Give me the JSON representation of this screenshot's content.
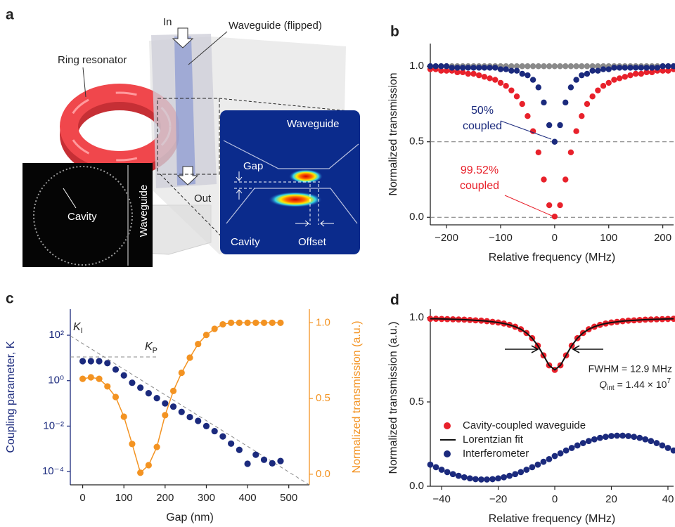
{
  "figure": {
    "panel_labels": [
      "a",
      "b",
      "c",
      "d"
    ]
  },
  "illustration": {
    "in": "In",
    "waveguide_flipped": "Waveguide (flipped)",
    "ring_resonator": "Ring resonator",
    "out": "Out",
    "micrograph": {
      "cavity": "Cavity",
      "waveguide": "Waveguide"
    },
    "inset": {
      "waveguide": "Waveguide",
      "gap": "Gap",
      "cavity": "Cavity",
      "offset": "Offset"
    }
  },
  "chart_data": [
    {
      "type": "scatter",
      "xlabel": "Relative frequency (MHz)",
      "ylabel": "Normalized transmission",
      "xlim": [
        -230,
        220
      ],
      "ylim": [
        -0.05,
        1.15
      ],
      "xticks": [
        {
          "value": -200,
          "label": "−200"
        },
        {
          "value": -100,
          "label": "−100"
        },
        0,
        100,
        200
      ],
      "yticks": [
        {
          "value": 0,
          "label": "0.0"
        },
        0.5,
        {
          "value": 1,
          "label": "1.0"
        }
      ],
      "dashed_lines": [
        0.5,
        0
      ],
      "x": [
        -230,
        -220,
        -210,
        -200,
        -190,
        -180,
        -170,
        -160,
        -150,
        -140,
        -130,
        -120,
        -110,
        -100,
        -90,
        -80,
        -70,
        -60,
        -50,
        -40,
        -30,
        -20,
        -10,
        0,
        10,
        20,
        30,
        40,
        50,
        60,
        70,
        80,
        90,
        100,
        110,
        120,
        130,
        140,
        150,
        160,
        170,
        180,
        190,
        200,
        210,
        220
      ],
      "series": [
        {
          "color": "#8a8a8a",
          "mode": "markers",
          "values": [
            1,
            1,
            1,
            1,
            1,
            1,
            1,
            1,
            1,
            1,
            1,
            1,
            1,
            1,
            1,
            1,
            1,
            1,
            1,
            1,
            1,
            1,
            1,
            1,
            1,
            1,
            1,
            1,
            1,
            1,
            1,
            1,
            1,
            1,
            1,
            1,
            1,
            1,
            1,
            1,
            1,
            1,
            1,
            1,
            1,
            1
          ]
        },
        {
          "color": "#e8212b",
          "mode": "markers",
          "values": [
            0.98,
            0.98,
            0.97,
            0.97,
            0.97,
            0.96,
            0.96,
            0.95,
            0.95,
            0.94,
            0.93,
            0.92,
            0.91,
            0.89,
            0.87,
            0.84,
            0.8,
            0.75,
            0.67,
            0.57,
            0.43,
            0.25,
            0.08,
            0.005,
            0.08,
            0.25,
            0.43,
            0.57,
            0.67,
            0.75,
            0.8,
            0.84,
            0.87,
            0.89,
            0.91,
            0.92,
            0.93,
            0.94,
            0.95,
            0.95,
            0.96,
            0.96,
            0.97,
            0.97,
            0.97,
            0.98
          ]
        },
        {
          "color": "#1b2a7d",
          "mode": "markers",
          "values": [
            1,
            1,
            1,
            1,
            0.99,
            0.99,
            0.99,
            0.99,
            0.99,
            0.99,
            0.99,
            0.99,
            0.99,
            0.98,
            0.98,
            0.97,
            0.97,
            0.95,
            0.94,
            0.91,
            0.86,
            0.76,
            0.61,
            0.5,
            0.61,
            0.76,
            0.86,
            0.91,
            0.94,
            0.95,
            0.97,
            0.97,
            0.98,
            0.98,
            0.99,
            0.99,
            0.99,
            0.99,
            0.99,
            0.99,
            0.99,
            0.99,
            0.99,
            1,
            1,
            1
          ]
        }
      ],
      "annotations": [
        {
          "lines": [
            "50%",
            "coupled"
          ],
          "color": "#1b2a7d"
        },
        {
          "lines": [
            "99.52%",
            "coupled"
          ],
          "color": "#e8212b"
        }
      ]
    },
    {
      "type": "scatter",
      "xlabel": "Gap (nm)",
      "ylabel": "Coupling parameter, K",
      "y2label": "Normalized transmission (a.u.)",
      "ycolor": "#1b2a7d",
      "y2color": "#f39322",
      "xlim": [
        -30,
        550
      ],
      "ylim": [
        2.6e-05,
        1400
      ],
      "ylog": true,
      "y2lim": [
        -0.07,
        1.09
      ],
      "xticks": [
        0,
        100,
        200,
        300,
        400,
        500
      ],
      "yticks": [
        {
          "value": 0.0001,
          "label": "10⁻⁴"
        },
        {
          "value": 0.01,
          "label": "10⁻²"
        },
        {
          "value": 1,
          "label": "10⁰"
        },
        {
          "value": 100,
          "label": "10²"
        }
      ],
      "y2ticks": [
        {
          "value": 0,
          "label": "0.0"
        },
        0.5,
        {
          "value": 1,
          "label": "1.0"
        }
      ],
      "x": [
        0,
        20,
        40,
        60,
        80,
        100,
        120,
        140,
        160,
        180,
        200,
        220,
        240,
        260,
        280,
        300,
        320,
        340,
        360,
        380,
        400,
        420,
        440,
        460,
        480
      ],
      "series": [
        {
          "color": "#1b2a7d",
          "mode": "markers",
          "values": [
            7.2,
            7.2,
            7.2,
            5.9,
            3.1,
            1.7,
            0.81,
            0.49,
            0.28,
            0.17,
            0.1,
            0.072,
            0.042,
            0.025,
            0.017,
            0.01,
            0.006,
            0.0035,
            0.0017,
            0.0009,
            0.00022,
            0.00055,
            0.00033,
            0.00023,
            0.00029
          ]
        },
        {
          "color": "#f39322",
          "mode": "markers+line",
          "axis": "y2",
          "values": [
            0.63,
            0.64,
            0.63,
            0.58,
            0.51,
            0.38,
            0.2,
            0.01,
            0.06,
            0.18,
            0.39,
            0.55,
            0.67,
            0.77,
            0.86,
            0.92,
            0.96,
            0.99,
            1,
            1,
            1,
            1,
            1,
            1,
            1
          ]
        }
      ],
      "annotations": [
        {
          "text": "K",
          "sub": "I"
        },
        {
          "text": "K",
          "sub": "P"
        }
      ]
    },
    {
      "type": "scatter",
      "xlabel": "Relative frequency (MHz)",
      "ylabel": "Normalized transmission (a.u.)",
      "xlim": [
        -44,
        42
      ],
      "ylim": [
        0,
        1.05
      ],
      "xticks": [
        {
          "value": -40,
          "label": "−40"
        },
        {
          "value": -20,
          "label": "−20"
        },
        0,
        20,
        40
      ],
      "yticks": [
        {
          "value": 0,
          "label": "0.0"
        },
        0.5,
        {
          "value": 1,
          "label": "1.0"
        }
      ],
      "legend": "center left",
      "x": [
        -44,
        -42,
        -40,
        -38,
        -36,
        -34,
        -32,
        -30,
        -28,
        -26,
        -24,
        -22,
        -20,
        -18,
        -16,
        -14,
        -12,
        -10,
        -8,
        -6,
        -4,
        -2,
        0,
        2,
        4,
        6,
        8,
        10,
        12,
        14,
        16,
        18,
        20,
        22,
        24,
        26,
        28,
        30,
        32,
        34,
        36,
        38,
        40,
        42
      ],
      "series": [
        {
          "name": "Cavity-coupled waveguide",
          "color": "#e8212b",
          "mode": "markers",
          "values": [
            0.993,
            0.993,
            0.992,
            0.991,
            0.99,
            0.989,
            0.988,
            0.986,
            0.984,
            0.982,
            0.979,
            0.975,
            0.971,
            0.965,
            0.957,
            0.946,
            0.931,
            0.909,
            0.878,
            0.834,
            0.776,
            0.717,
            0.69,
            0.717,
            0.776,
            0.834,
            0.878,
            0.909,
            0.931,
            0.946,
            0.957,
            0.965,
            0.971,
            0.975,
            0.979,
            0.982,
            0.984,
            0.986,
            0.988,
            0.989,
            0.99,
            0.991,
            0.992,
            0.993
          ]
        },
        {
          "name": "Lorentzian fit",
          "color": "#111111",
          "mode": "line",
          "values": [
            0.993,
            0.993,
            0.992,
            0.991,
            0.99,
            0.989,
            0.988,
            0.986,
            0.984,
            0.982,
            0.979,
            0.975,
            0.971,
            0.965,
            0.957,
            0.946,
            0.931,
            0.909,
            0.878,
            0.834,
            0.776,
            0.717,
            0.69,
            0.717,
            0.776,
            0.834,
            0.878,
            0.909,
            0.931,
            0.946,
            0.957,
            0.965,
            0.971,
            0.975,
            0.979,
            0.982,
            0.984,
            0.986,
            0.988,
            0.989,
            0.99,
            0.991,
            0.992,
            0.993
          ]
        },
        {
          "name": "Interferometer",
          "color": "#1b2a7d",
          "mode": "markers",
          "values": [
            0.128,
            0.113,
            0.098,
            0.084,
            0.072,
            0.062,
            0.053,
            0.047,
            0.042,
            0.04,
            0.04,
            0.042,
            0.047,
            0.053,
            0.062,
            0.072,
            0.084,
            0.098,
            0.113,
            0.128,
            0.145,
            0.161,
            0.179,
            0.195,
            0.212,
            0.227,
            0.242,
            0.256,
            0.268,
            0.278,
            0.287,
            0.293,
            0.298,
            0.3,
            0.3,
            0.298,
            0.293,
            0.287,
            0.278,
            0.268,
            0.256,
            0.242,
            0.227,
            0.212
          ]
        }
      ],
      "annotations": [
        {
          "text": "FWHM = 12.9 MHz"
        },
        {
          "text": "Q",
          "sub": "int",
          "rest": " = 1.44 × 10",
          "sup": "7"
        }
      ]
    }
  ]
}
